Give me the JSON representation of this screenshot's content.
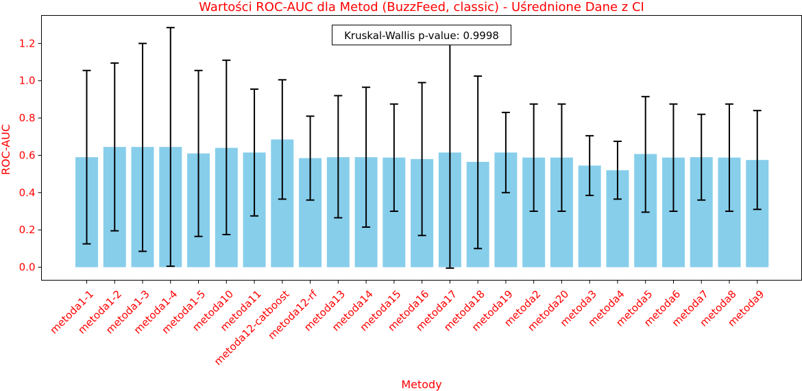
{
  "chart_data": {
    "type": "bar",
    "title": "Wartości ROC-AUC dla Metod (BuzzFeed, classic) - Uśrednione Dane z CI",
    "xlabel": "Metody",
    "ylabel": "ROC-AUC",
    "categories": [
      "metoda1-1",
      "metoda1-2",
      "metoda1-3",
      "metoda1-4",
      "metoda1-5",
      "metoda10",
      "metoda11",
      "metoda12-catboost",
      "metoda12-rf",
      "metoda13",
      "metoda14",
      "metoda15",
      "metoda16",
      "metoda17",
      "metoda18",
      "metoda19",
      "metoda2",
      "metoda20",
      "metoda3",
      "metoda4",
      "metoda5",
      "metoda6",
      "metoda7",
      "metoda8",
      "metoda9"
    ],
    "values": [
      0.59,
      0.645,
      0.645,
      0.645,
      0.61,
      0.64,
      0.615,
      0.685,
      0.585,
      0.59,
      0.59,
      0.588,
      0.58,
      0.615,
      0.565,
      0.615,
      0.588,
      0.588,
      0.545,
      0.52,
      0.607,
      0.588,
      0.59,
      0.588,
      0.575
    ],
    "ci_lower": [
      0.125,
      0.195,
      0.085,
      0.005,
      0.165,
      0.175,
      0.275,
      0.365,
      0.36,
      0.265,
      0.215,
      0.3,
      0.17,
      -0.005,
      0.1,
      0.4,
      0.3,
      0.3,
      0.385,
      0.365,
      0.295,
      0.3,
      0.36,
      0.3,
      0.31
    ],
    "ci_upper": [
      1.055,
      1.095,
      1.2,
      1.285,
      1.055,
      1.11,
      0.955,
      1.005,
      0.81,
      0.92,
      0.965,
      0.875,
      0.99,
      1.23,
      1.025,
      0.83,
      0.875,
      0.875,
      0.705,
      0.675,
      0.915,
      0.875,
      0.82,
      0.875,
      0.84
    ],
    "y_ticks": [
      "0.0",
      "0.2",
      "0.4",
      "0.6",
      "0.8",
      "1.0",
      "1.2"
    ],
    "ylim": [
      -0.07,
      1.35
    ],
    "annotation": "Kruskal-Wallis p-value: 0.9998",
    "grid": false,
    "colors": {
      "bar": "#87ceeb",
      "text": "#ff0000",
      "error_bar": "#000000",
      "axes": "#000000"
    }
  }
}
